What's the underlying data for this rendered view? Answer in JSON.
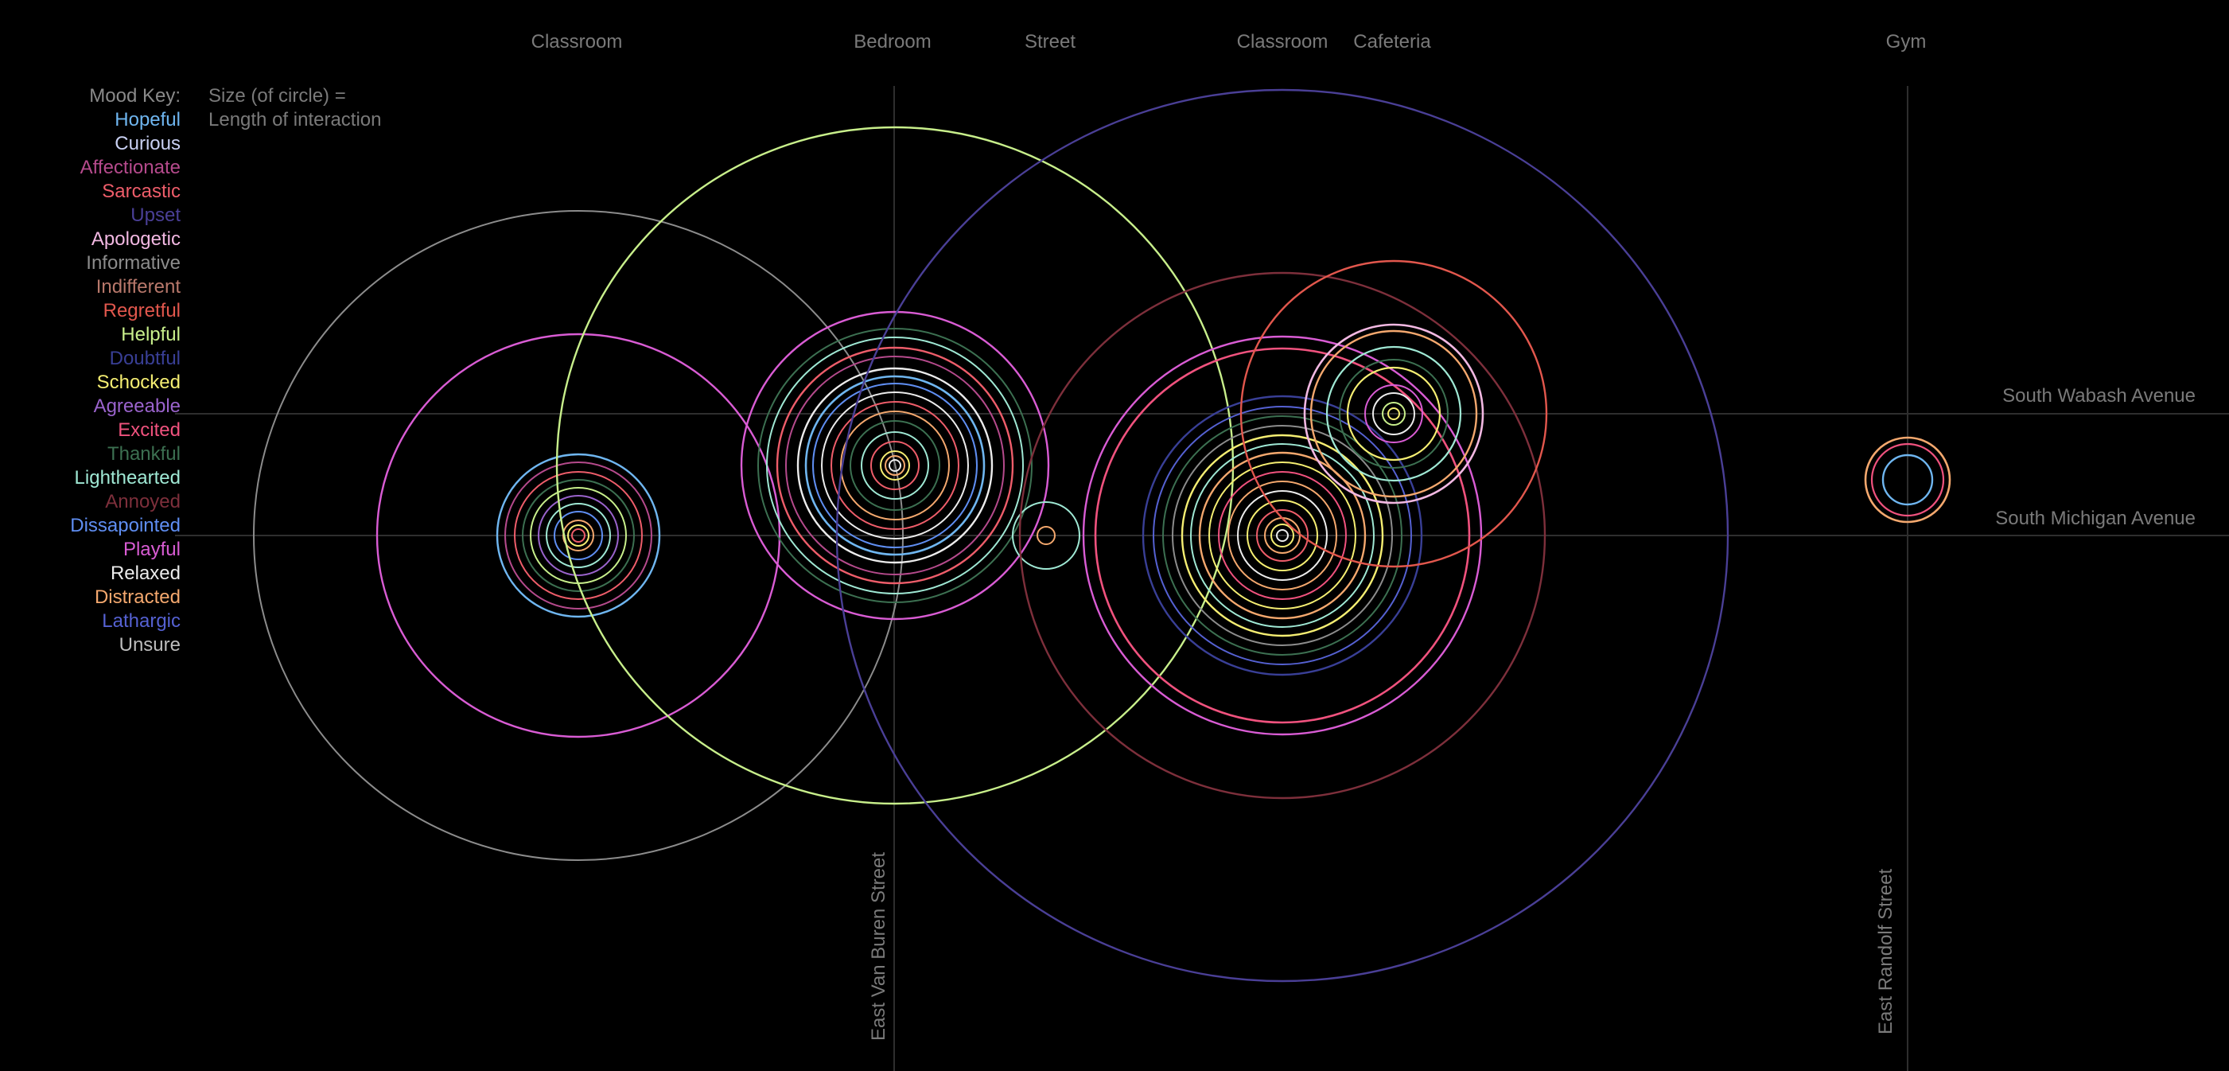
{
  "mood_key": {
    "title": "Mood Key:",
    "title_color": "#8a8a8a",
    "items": [
      {
        "label": "Hopeful",
        "color": "#6fb6f0"
      },
      {
        "label": "Curious",
        "color": "#c9d0f2"
      },
      {
        "label": "Affectionate",
        "color": "#b54a8c"
      },
      {
        "label": "Sarcastic",
        "color": "#ee5d6a"
      },
      {
        "label": "Upset",
        "color": "#4a3f96"
      },
      {
        "label": "Apologetic",
        "color": "#f2b8e2"
      },
      {
        "label": "Informative",
        "color": "#8c8c8c"
      },
      {
        "label": "Indifferent",
        "color": "#b8786b"
      },
      {
        "label": "Regretful",
        "color": "#e2574d"
      },
      {
        "label": "Helpful",
        "color": "#c8ef8b"
      },
      {
        "label": "Doubtful",
        "color": "#393f96"
      },
      {
        "label": "Schocked",
        "color": "#f5ee72"
      },
      {
        "label": "Agreeable",
        "color": "#9a63cc"
      },
      {
        "label": "Excited",
        "color": "#f0527e"
      },
      {
        "label": "Thankful",
        "color": "#3c7051"
      },
      {
        "label": "Lighthearted",
        "color": "#9fe8d4"
      },
      {
        "label": "Annoyed",
        "color": "#7d2f3b"
      },
      {
        "label": "Dissapointed",
        "color": "#5f8ef2"
      },
      {
        "label": "Playful",
        "color": "#d95cd4"
      },
      {
        "label": "Relaxed",
        "color": "#ececec"
      },
      {
        "label": "Distracted",
        "color": "#f4a86e"
      },
      {
        "label": "Lathargic",
        "color": "#5561d2"
      },
      {
        "label": "Unsure",
        "color": "#bdbdbd"
      }
    ]
  },
  "size_note": {
    "line1": "Size (of circle) =",
    "line2": "Length of interaction"
  },
  "locations": [
    "Classroom",
    "Bedroom",
    "Street",
    "Classroom",
    "Cafeteria",
    "Gym"
  ],
  "streets": {
    "horizontal": [
      "South Wabash Avenue",
      "South Michigan Avenue"
    ],
    "vertical": [
      "East Van Buren Street",
      "East Randolf Street"
    ]
  },
  "colors": {
    "background": "#000000",
    "label_text": "#7a7a7a",
    "grid_line": "#2e2e2e"
  }
}
